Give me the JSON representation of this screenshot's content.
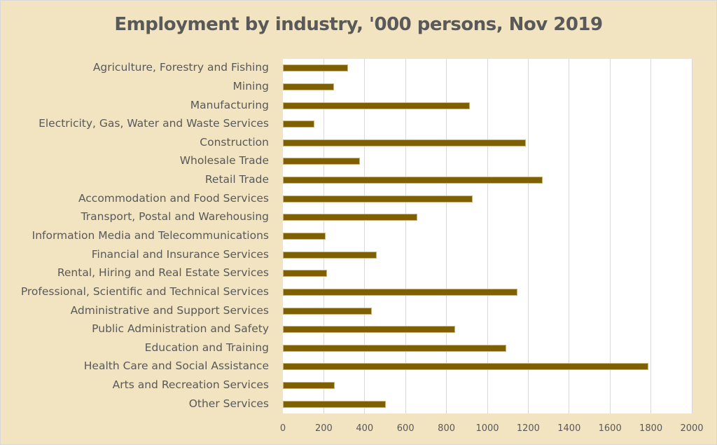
{
  "chart_data": {
    "type": "bar",
    "orientation": "horizontal",
    "title": "Employment by industry, '000 persons, Nov 2019",
    "xlabel": "",
    "ylabel": "",
    "xlim": [
      0,
      2000
    ],
    "xticks": [
      0,
      200,
      400,
      600,
      800,
      1000,
      1200,
      1400,
      1600,
      1800,
      2000
    ],
    "grid": true,
    "legend": "none",
    "bar_color": "#7f6000",
    "categories": [
      "Agriculture, Forestry and Fishing",
      "Mining",
      "Manufacturing",
      "Electricity, Gas, Water and Waste Services",
      "Construction",
      "Wholesale Trade",
      "Retail Trade",
      "Accommodation and Food Services",
      "Transport, Postal and Warehousing",
      "Information Media and Telecommunications",
      "Financial and Insurance Services",
      "Rental, Hiring and Real Estate Services",
      "Professional, Scientific and Technical Services",
      "Administrative and Support Services",
      "Public Administration and Safety",
      "Education and Training",
      "Health Care and Social Assistance",
      "Arts and Recreation Services",
      "Other Services"
    ],
    "values": [
      319,
      250,
      916,
      155,
      1187,
      377,
      1272,
      927,
      658,
      209,
      460,
      216,
      1146,
      436,
      842,
      1094,
      1786,
      254,
      502
    ]
  }
}
